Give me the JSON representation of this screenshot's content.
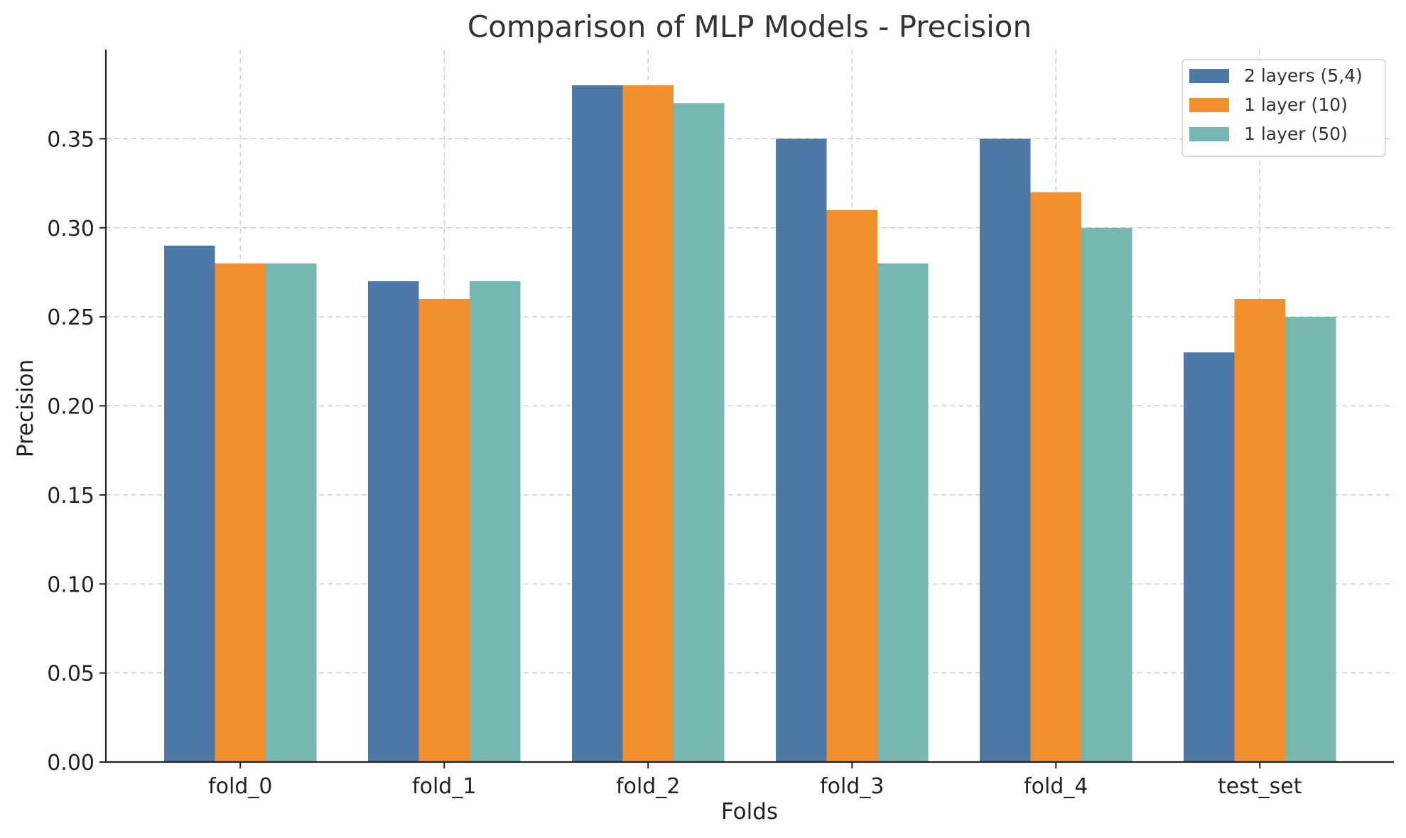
{
  "chart_data": {
    "type": "bar",
    "title": "Comparison of MLP Models - Precision",
    "xlabel": "Folds",
    "ylabel": "Precision",
    "categories": [
      "fold_0",
      "fold_1",
      "fold_2",
      "fold_3",
      "fold_4",
      "test_set"
    ],
    "series": [
      {
        "name": "2 layers (5,4)",
        "color": "#4e79a7",
        "values": [
          0.29,
          0.27,
          0.38,
          0.35,
          0.35,
          0.23
        ]
      },
      {
        "name": "1 layer (10)",
        "color": "#f28e2b",
        "values": [
          0.28,
          0.26,
          0.38,
          0.31,
          0.32,
          0.26
        ]
      },
      {
        "name": "1 layer (50)",
        "color": "#76b7b2",
        "values": [
          0.28,
          0.27,
          0.37,
          0.28,
          0.3,
          0.25
        ]
      }
    ],
    "ylim": [
      0,
      0.4
    ],
    "yticks": [
      "0.00",
      "0.05",
      "0.10",
      "0.15",
      "0.20",
      "0.25",
      "0.30",
      "0.35"
    ],
    "grid": true,
    "legend_position": "top-right"
  }
}
